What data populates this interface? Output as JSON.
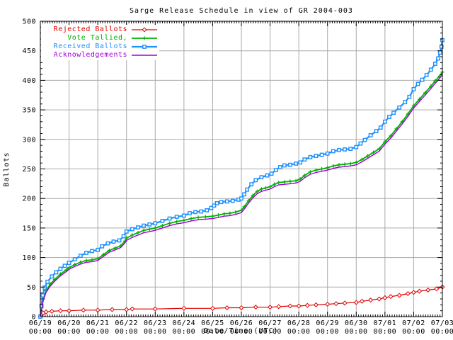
{
  "chart_data": {
    "type": "line",
    "title": "Sarge Release Schedule in view of GR 2004-003",
    "xlabel": "Date/Time (UTC)",
    "ylabel": "Ballots",
    "ylim": [
      0,
      500
    ],
    "y_ticks": [
      0,
      50,
      100,
      150,
      200,
      250,
      300,
      350,
      400,
      450,
      500
    ],
    "x_tick_dates": [
      "06/19",
      "06/20",
      "06/21",
      "06/22",
      "06/23",
      "06/24",
      "06/25",
      "06/26",
      "06/27",
      "06/28",
      "06/29",
      "06/30",
      "07/01",
      "07/02",
      "07/03"
    ],
    "x_tick_time_label": "00:00",
    "x_unit": "days since 06/19 00:00 UTC",
    "grid": true,
    "legend_position": "top-left",
    "background": "#ffffff",
    "grid_color": "#aaaaaa",
    "axis_color": "#000000",
    "series": [
      {
        "name": "Rejected Ballots",
        "color": "#e00000",
        "marker": "diamond",
        "points": [
          [
            0,
            0
          ],
          [
            0.04,
            3
          ],
          [
            0.1,
            6
          ],
          [
            0.2,
            8
          ],
          [
            0.4,
            9
          ],
          [
            0.7,
            10
          ],
          [
            1.0,
            10
          ],
          [
            1.5,
            11
          ],
          [
            2.0,
            11
          ],
          [
            2.5,
            12
          ],
          [
            3.0,
            12
          ],
          [
            3.2,
            13
          ],
          [
            4.0,
            13
          ],
          [
            5.0,
            14
          ],
          [
            6.0,
            14
          ],
          [
            6.5,
            15
          ],
          [
            7.0,
            15
          ],
          [
            7.5,
            16
          ],
          [
            8.0,
            16
          ],
          [
            8.3,
            17
          ],
          [
            8.7,
            18
          ],
          [
            9.0,
            18
          ],
          [
            9.3,
            19
          ],
          [
            9.6,
            20
          ],
          [
            10.0,
            21
          ],
          [
            10.3,
            22
          ],
          [
            10.6,
            23
          ],
          [
            11.0,
            24
          ],
          [
            11.2,
            26
          ],
          [
            11.5,
            28
          ],
          [
            11.8,
            30
          ],
          [
            12.0,
            32
          ],
          [
            12.2,
            34
          ],
          [
            12.5,
            36
          ],
          [
            12.8,
            39
          ],
          [
            13.0,
            41
          ],
          [
            13.2,
            43
          ],
          [
            13.5,
            45
          ],
          [
            13.8,
            47
          ],
          [
            14.0,
            50
          ]
        ]
      },
      {
        "name": "Vote Tallied,",
        "color": "#00b000",
        "marker": "plus",
        "points": [
          [
            0,
            0
          ],
          [
            0.05,
            15
          ],
          [
            0.1,
            30
          ],
          [
            0.2,
            44
          ],
          [
            0.35,
            55
          ],
          [
            0.5,
            63
          ],
          [
            0.7,
            72
          ],
          [
            0.9,
            79
          ],
          [
            1.0,
            83
          ],
          [
            1.2,
            88
          ],
          [
            1.4,
            92
          ],
          [
            1.6,
            95
          ],
          [
            1.8,
            96
          ],
          [
            2.0,
            98
          ],
          [
            2.2,
            105
          ],
          [
            2.4,
            112
          ],
          [
            2.6,
            116
          ],
          [
            2.8,
            120
          ],
          [
            2.95,
            128
          ],
          [
            3.0,
            133
          ],
          [
            3.2,
            138
          ],
          [
            3.4,
            142
          ],
          [
            3.6,
            146
          ],
          [
            3.8,
            148
          ],
          [
            4.0,
            150
          ],
          [
            4.25,
            154
          ],
          [
            4.5,
            158
          ],
          [
            4.75,
            161
          ],
          [
            5.0,
            163
          ],
          [
            5.25,
            166
          ],
          [
            5.5,
            168
          ],
          [
            5.75,
            169
          ],
          [
            6.0,
            170
          ],
          [
            6.2,
            172
          ],
          [
            6.4,
            174
          ],
          [
            6.6,
            175
          ],
          [
            6.8,
            177
          ],
          [
            7.0,
            180
          ],
          [
            7.1,
            186
          ],
          [
            7.25,
            196
          ],
          [
            7.4,
            205
          ],
          [
            7.55,
            212
          ],
          [
            7.7,
            216
          ],
          [
            7.85,
            218
          ],
          [
            8.0,
            220
          ],
          [
            8.15,
            224
          ],
          [
            8.3,
            227
          ],
          [
            8.5,
            228
          ],
          [
            8.7,
            229
          ],
          [
            8.9,
            230
          ],
          [
            9.05,
            233
          ],
          [
            9.2,
            239
          ],
          [
            9.4,
            245
          ],
          [
            9.6,
            248
          ],
          [
            9.8,
            250
          ],
          [
            10.0,
            252
          ],
          [
            10.2,
            255
          ],
          [
            10.4,
            257
          ],
          [
            10.6,
            258
          ],
          [
            10.8,
            259
          ],
          [
            11.0,
            261
          ],
          [
            11.2,
            266
          ],
          [
            11.4,
            272
          ],
          [
            11.6,
            278
          ],
          [
            11.8,
            284
          ],
          [
            12.0,
            296
          ],
          [
            12.2,
            306
          ],
          [
            12.4,
            318
          ],
          [
            12.6,
            330
          ],
          [
            12.8,
            343
          ],
          [
            13.0,
            357
          ],
          [
            13.2,
            368
          ],
          [
            13.4,
            379
          ],
          [
            13.6,
            390
          ],
          [
            13.75,
            399
          ],
          [
            13.9,
            407
          ],
          [
            14.0,
            414
          ]
        ]
      },
      {
        "name": "Received Ballots",
        "color": "#1e90ff",
        "marker": "square",
        "points": [
          [
            0,
            0
          ],
          [
            0.04,
            18
          ],
          [
            0.08,
            36
          ],
          [
            0.15,
            49
          ],
          [
            0.25,
            59
          ],
          [
            0.4,
            68
          ],
          [
            0.55,
            75
          ],
          [
            0.7,
            81
          ],
          [
            0.85,
            86
          ],
          [
            1.0,
            91
          ],
          [
            1.2,
            97
          ],
          [
            1.4,
            103
          ],
          [
            1.6,
            108
          ],
          [
            1.8,
            111
          ],
          [
            2.0,
            113
          ],
          [
            2.15,
            119
          ],
          [
            2.35,
            124
          ],
          [
            2.55,
            127
          ],
          [
            2.75,
            129
          ],
          [
            2.9,
            136
          ],
          [
            3.0,
            144
          ],
          [
            3.2,
            148
          ],
          [
            3.4,
            151
          ],
          [
            3.6,
            154
          ],
          [
            3.8,
            156
          ],
          [
            4.0,
            158
          ],
          [
            4.25,
            162
          ],
          [
            4.5,
            166
          ],
          [
            4.75,
            169
          ],
          [
            5.0,
            171
          ],
          [
            5.2,
            175
          ],
          [
            5.4,
            177
          ],
          [
            5.6,
            178
          ],
          [
            5.8,
            180
          ],
          [
            5.95,
            184
          ],
          [
            6.05,
            188
          ],
          [
            6.15,
            192
          ],
          [
            6.3,
            194
          ],
          [
            6.5,
            195
          ],
          [
            6.7,
            196
          ],
          [
            6.9,
            198
          ],
          [
            7.0,
            200
          ],
          [
            7.1,
            207
          ],
          [
            7.2,
            215
          ],
          [
            7.35,
            224
          ],
          [
            7.5,
            231
          ],
          [
            7.7,
            236
          ],
          [
            7.9,
            239
          ],
          [
            8.05,
            242
          ],
          [
            8.2,
            248
          ],
          [
            8.35,
            253
          ],
          [
            8.5,
            256
          ],
          [
            8.7,
            257
          ],
          [
            8.9,
            259
          ],
          [
            9.05,
            261
          ],
          [
            9.2,
            266
          ],
          [
            9.4,
            270
          ],
          [
            9.6,
            272
          ],
          [
            9.8,
            274
          ],
          [
            10.0,
            276
          ],
          [
            10.2,
            280
          ],
          [
            10.4,
            282
          ],
          [
            10.6,
            283
          ],
          [
            10.8,
            284
          ],
          [
            11.0,
            287
          ],
          [
            11.15,
            293
          ],
          [
            11.3,
            299
          ],
          [
            11.5,
            307
          ],
          [
            11.7,
            314
          ],
          [
            11.85,
            320
          ],
          [
            12.0,
            330
          ],
          [
            12.15,
            338
          ],
          [
            12.3,
            345
          ],
          [
            12.5,
            354
          ],
          [
            12.7,
            363
          ],
          [
            12.85,
            372
          ],
          [
            13.0,
            385
          ],
          [
            13.15,
            394
          ],
          [
            13.3,
            401
          ],
          [
            13.45,
            409
          ],
          [
            13.6,
            418
          ],
          [
            13.75,
            428
          ],
          [
            13.85,
            437
          ],
          [
            13.92,
            447
          ],
          [
            13.97,
            457
          ],
          [
            14.0,
            468
          ]
        ]
      },
      {
        "name": "Acknowledgements",
        "color": "#9f00d8",
        "marker": "none",
        "points": [
          [
            0,
            0
          ],
          [
            0.05,
            13
          ],
          [
            0.1,
            27
          ],
          [
            0.2,
            41
          ],
          [
            0.35,
            52
          ],
          [
            0.5,
            60
          ],
          [
            0.7,
            69
          ],
          [
            0.9,
            76
          ],
          [
            1.0,
            80
          ],
          [
            1.2,
            85
          ],
          [
            1.4,
            89
          ],
          [
            1.6,
            92
          ],
          [
            1.8,
            93
          ],
          [
            2.0,
            95
          ],
          [
            2.2,
            102
          ],
          [
            2.4,
            109
          ],
          [
            2.6,
            113
          ],
          [
            2.8,
            117
          ],
          [
            2.95,
            125
          ],
          [
            3.0,
            129
          ],
          [
            3.2,
            134
          ],
          [
            3.4,
            138
          ],
          [
            3.6,
            142
          ],
          [
            3.8,
            144
          ],
          [
            4.0,
            146
          ],
          [
            4.25,
            150
          ],
          [
            4.5,
            154
          ],
          [
            4.75,
            157
          ],
          [
            5.0,
            159
          ],
          [
            5.25,
            162
          ],
          [
            5.5,
            164
          ],
          [
            5.75,
            165
          ],
          [
            6.0,
            166
          ],
          [
            6.2,
            168
          ],
          [
            6.4,
            170
          ],
          [
            6.6,
            171
          ],
          [
            6.8,
            173
          ],
          [
            7.0,
            176
          ],
          [
            7.1,
            182
          ],
          [
            7.25,
            192
          ],
          [
            7.4,
            201
          ],
          [
            7.55,
            208
          ],
          [
            7.7,
            212
          ],
          [
            7.85,
            214
          ],
          [
            8.0,
            216
          ],
          [
            8.15,
            220
          ],
          [
            8.3,
            223
          ],
          [
            8.5,
            224
          ],
          [
            8.7,
            225
          ],
          [
            8.9,
            226
          ],
          [
            9.05,
            229
          ],
          [
            9.2,
            235
          ],
          [
            9.4,
            241
          ],
          [
            9.6,
            244
          ],
          [
            9.8,
            246
          ],
          [
            10.0,
            248
          ],
          [
            10.2,
            251
          ],
          [
            10.4,
            253
          ],
          [
            10.6,
            254
          ],
          [
            10.8,
            255
          ],
          [
            11.0,
            257
          ],
          [
            11.2,
            262
          ],
          [
            11.4,
            268
          ],
          [
            11.6,
            274
          ],
          [
            11.8,
            280
          ],
          [
            12.0,
            292
          ],
          [
            12.2,
            302
          ],
          [
            12.4,
            314
          ],
          [
            12.6,
            326
          ],
          [
            12.8,
            339
          ],
          [
            13.0,
            353
          ],
          [
            13.2,
            364
          ],
          [
            13.4,
            375
          ],
          [
            13.6,
            386
          ],
          [
            13.75,
            395
          ],
          [
            13.9,
            403
          ],
          [
            14.0,
            410
          ]
        ]
      }
    ]
  }
}
